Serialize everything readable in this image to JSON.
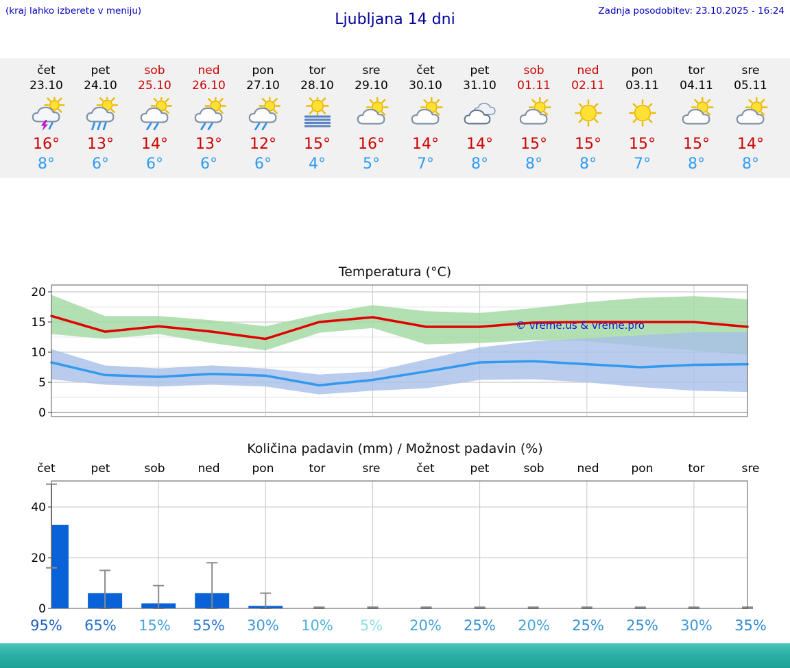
{
  "header": {
    "hint": "(kraj lahko izberete v meniju)",
    "title": "Ljubljana 14 dni",
    "updated": "Zadnja posodobitev: 23.10.2025 - 16:24"
  },
  "days": [
    {
      "name": "čet",
      "date": "23.10",
      "weekend": false,
      "icon": "thunder-shower",
      "tmax": "16°",
      "tmin": "8°"
    },
    {
      "name": "pet",
      "date": "24.10",
      "weekend": false,
      "icon": "heavy-rain",
      "tmax": "13°",
      "tmin": "6°"
    },
    {
      "name": "sob",
      "date": "25.10",
      "weekend": true,
      "icon": "shower",
      "tmax": "14°",
      "tmin": "6°"
    },
    {
      "name": "ned",
      "date": "26.10",
      "weekend": true,
      "icon": "shower",
      "tmax": "13°",
      "tmin": "6°"
    },
    {
      "name": "pon",
      "date": "27.10",
      "weekend": false,
      "icon": "shower",
      "tmax": "12°",
      "tmin": "6°"
    },
    {
      "name": "tor",
      "date": "28.10",
      "weekend": false,
      "icon": "fog-sun",
      "tmax": "15°",
      "tmin": "4°"
    },
    {
      "name": "sre",
      "date": "29.10",
      "weekend": false,
      "icon": "partly-cloudy",
      "tmax": "16°",
      "tmin": "5°"
    },
    {
      "name": "čet",
      "date": "30.10",
      "weekend": false,
      "icon": "partly-cloudy",
      "tmax": "14°",
      "tmin": "7°"
    },
    {
      "name": "pet",
      "date": "31.10",
      "weekend": false,
      "icon": "cloudy",
      "tmax": "14°",
      "tmin": "8°"
    },
    {
      "name": "sob",
      "date": "01.11",
      "weekend": true,
      "icon": "partly-cloudy",
      "tmax": "15°",
      "tmin": "8°"
    },
    {
      "name": "ned",
      "date": "02.11",
      "weekend": true,
      "icon": "sunny",
      "tmax": "15°",
      "tmin": "8°"
    },
    {
      "name": "pon",
      "date": "03.11",
      "weekend": false,
      "icon": "sunny",
      "tmax": "15°",
      "tmin": "7°"
    },
    {
      "name": "tor",
      "date": "04.11",
      "weekend": false,
      "icon": "partly-cloudy",
      "tmax": "15°",
      "tmin": "8°"
    },
    {
      "name": "sre",
      "date": "05.11",
      "weekend": false,
      "icon": "partly-cloudy",
      "tmax": "14°",
      "tmin": "8°"
    }
  ],
  "chart_data": [
    {
      "type": "line",
      "title": "Temperatura (°C)",
      "watermark": "© vreme.us & vreme.pro",
      "ylim": [
        0,
        20
      ],
      "yticks": [
        0,
        5,
        10,
        15,
        20
      ],
      "grid": true,
      "band_colors": {
        "max_range": "#a0d8a0",
        "min_range": "#a8bfe8"
      },
      "series": [
        {
          "name": "temp_max",
          "color": "#e00000",
          "values": [
            16,
            13.4,
            14.3,
            13.4,
            12.2,
            15,
            15.8,
            14.2,
            14.2,
            14.9,
            15,
            15,
            15,
            14.2
          ]
        },
        {
          "name": "temp_min",
          "color": "#3399ee",
          "values": [
            8.3,
            6.2,
            5.9,
            6.4,
            6.1,
            4.5,
            5.4,
            6.8,
            8.3,
            8.5,
            8,
            7.5,
            7.9,
            8
          ]
        },
        {
          "name": "temp_max_range_high",
          "values": [
            19.5,
            16,
            16,
            15.3,
            14.3,
            16.3,
            17.8,
            16.8,
            16.5,
            17.3,
            18.3,
            19,
            19.3,
            18.8
          ]
        },
        {
          "name": "temp_max_range_low",
          "values": [
            13,
            12.2,
            13,
            11.5,
            10.3,
            13.2,
            14,
            11.3,
            11.5,
            12,
            11.8,
            11,
            10.3,
            9.5
          ]
        },
        {
          "name": "temp_min_range_high",
          "values": [
            10.5,
            7.8,
            7.3,
            7.8,
            7.3,
            6.3,
            6.8,
            8.8,
            10.8,
            11.8,
            12.3,
            12.8,
            13.3,
            13.3
          ]
        },
        {
          "name": "temp_min_range_low",
          "values": [
            5.5,
            4.6,
            4.3,
            4.6,
            4.3,
            3,
            3.6,
            4,
            5.4,
            5.5,
            5,
            4.2,
            3.6,
            3.4
          ]
        }
      ]
    },
    {
      "type": "bar",
      "title": "Količina padavin (mm) / Možnost padavin (%)",
      "categories": [
        "čet",
        "pet",
        "sob",
        "ned",
        "pon",
        "tor",
        "sre",
        "čet",
        "pet",
        "sob",
        "ned",
        "pon",
        "tor",
        "sre"
      ],
      "values": [
        33,
        6,
        2,
        6,
        1,
        0,
        0,
        0,
        0,
        0,
        0,
        0,
        0,
        0
      ],
      "range_low": [
        16,
        0,
        0,
        0,
        0,
        0,
        0,
        0,
        0,
        0,
        0,
        0,
        0,
        0
      ],
      "range_high": [
        49,
        15,
        9,
        18,
        6,
        0.5,
        0.5,
        0.5,
        0.5,
        0.5,
        0.5,
        0.5,
        0.5,
        0.5
      ],
      "probability_pct": [
        95,
        65,
        15,
        55,
        30,
        10,
        5,
        20,
        25,
        20,
        25,
        25,
        30,
        35
      ],
      "pct_colors": [
        "#1b5fc2",
        "#2470ca",
        "#4ba3d9",
        "#2d7ccd",
        "#3e98d6",
        "#4fb0dc",
        "#8fe0e4",
        "#45a3d8",
        "#3390d2",
        "#45a3d8",
        "#3390d2",
        "#3390d2",
        "#3e98d6",
        "#2d8ad0"
      ],
      "bar_color": "#0a62d8",
      "whisker_color": "#8a8a8a",
      "ylim": [
        0,
        50
      ],
      "yticks": [
        0,
        20,
        40
      ],
      "grid": true
    }
  ]
}
